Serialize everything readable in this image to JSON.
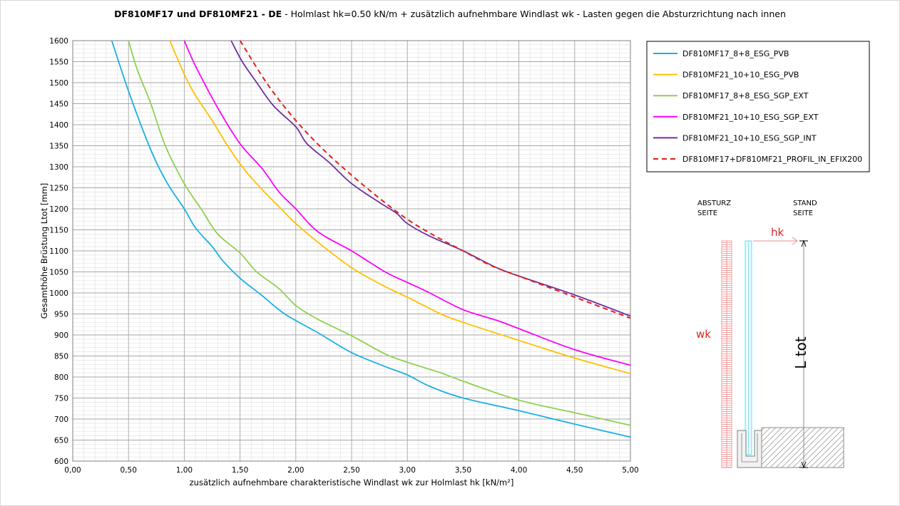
{
  "title": {
    "bold": "DF810MF17 und DF810MF21 - DE",
    "rest": " - Holmlast hk=0.50 kN/m + zusätzlich aufnehmbare Windlast wk - Lasten gegen die Absturzrichtung nach innen"
  },
  "chart_data": {
    "type": "line",
    "title": "DF810MF17 und DF810MF21 - DE - Holmlast hk=0.50 kN/m + zusätzlich aufnehmbare Windlast wk - Lasten gegen die Absturzrichtung nach innen",
    "xlabel": "zusätzlich aufnehmbare charakteristische Windlast wk zur Holmlast hk [kN/m²]",
    "ylabel": "Gesamthöhe Brüstung Ltot [mm]",
    "xlim": [
      0,
      5
    ],
    "ylim": [
      600,
      1600
    ],
    "x_ticks": [
      "0,00",
      "0,50",
      "1,00",
      "1,50",
      "2,00",
      "2,50",
      "3,00",
      "3,50",
      "4,00",
      "4,50",
      "5,00"
    ],
    "y_ticks": [
      "600",
      "650",
      "700",
      "750",
      "800",
      "850",
      "900",
      "950",
      "1000",
      "1050",
      "1100",
      "1150",
      "1200",
      "1250",
      "1300",
      "1350",
      "1400",
      "1450",
      "1500",
      "1550",
      "1600"
    ],
    "grid": "major and minor",
    "legend_position": "top-right",
    "series": [
      {
        "name": "DF810MF17_8+8_ESG_PVB",
        "color": "#1AAFE6",
        "dash": false,
        "points": [
          [
            0.35,
            1600
          ],
          [
            0.5,
            1480
          ],
          [
            0.7,
            1340
          ],
          [
            0.85,
            1260
          ],
          [
            1.0,
            1200
          ],
          [
            1.1,
            1155
          ],
          [
            1.25,
            1110
          ],
          [
            1.35,
            1075
          ],
          [
            1.5,
            1035
          ],
          [
            1.7,
            993
          ],
          [
            1.9,
            950
          ],
          [
            2.2,
            905
          ],
          [
            2.5,
            858
          ],
          [
            2.8,
            825
          ],
          [
            3.0,
            805
          ],
          [
            3.2,
            778
          ],
          [
            3.5,
            750
          ],
          [
            4.0,
            720
          ],
          [
            4.5,
            688
          ],
          [
            5.0,
            657
          ]
        ]
      },
      {
        "name": "DF810MF21_10+10_ESG_PVB",
        "color": "#FFC000",
        "dash": false,
        "points": [
          [
            0.87,
            1600
          ],
          [
            1.0,
            1520
          ],
          [
            1.1,
            1470
          ],
          [
            1.25,
            1410
          ],
          [
            1.4,
            1345
          ],
          [
            1.55,
            1290
          ],
          [
            1.7,
            1245
          ],
          [
            1.85,
            1205
          ],
          [
            2.0,
            1165
          ],
          [
            2.2,
            1120
          ],
          [
            2.5,
            1060
          ],
          [
            2.8,
            1015
          ],
          [
            3.0,
            990
          ],
          [
            3.3,
            950
          ],
          [
            3.5,
            930
          ],
          [
            4.0,
            887
          ],
          [
            4.5,
            845
          ],
          [
            5.0,
            808
          ]
        ]
      },
      {
        "name": "DF810MF17_8+8_ESG_SGP_EXT",
        "color": "#92D050",
        "dash": false,
        "points": [
          [
            0.5,
            1600
          ],
          [
            0.58,
            1530
          ],
          [
            0.7,
            1450
          ],
          [
            0.83,
            1350
          ],
          [
            1.0,
            1260
          ],
          [
            1.15,
            1200
          ],
          [
            1.3,
            1140
          ],
          [
            1.5,
            1095
          ],
          [
            1.65,
            1050
          ],
          [
            1.85,
            1010
          ],
          [
            2.0,
            970
          ],
          [
            2.2,
            937
          ],
          [
            2.5,
            898
          ],
          [
            2.8,
            855
          ],
          [
            3.0,
            835
          ],
          [
            3.3,
            810
          ],
          [
            3.5,
            790
          ],
          [
            4.0,
            745
          ],
          [
            4.5,
            715
          ],
          [
            5.0,
            685
          ]
        ]
      },
      {
        "name": "DF810MF21_10+10_ESG_SGP_EXT",
        "color": "#FF00FF",
        "dash": false,
        "points": [
          [
            1.0,
            1600
          ],
          [
            1.1,
            1540
          ],
          [
            1.3,
            1440
          ],
          [
            1.5,
            1355
          ],
          [
            1.7,
            1295
          ],
          [
            1.85,
            1240
          ],
          [
            2.0,
            1200
          ],
          [
            2.2,
            1145
          ],
          [
            2.5,
            1100
          ],
          [
            2.8,
            1050
          ],
          [
            3.0,
            1025
          ],
          [
            3.2,
            1000
          ],
          [
            3.5,
            960
          ],
          [
            3.8,
            935
          ],
          [
            4.0,
            915
          ],
          [
            4.5,
            865
          ],
          [
            5.0,
            828
          ]
        ]
      },
      {
        "name": "DF810MF21_10+10_ESG_SGP_INT",
        "color": "#7030A0",
        "dash": false,
        "points": [
          [
            1.42,
            1600
          ],
          [
            1.52,
            1550
          ],
          [
            1.65,
            1500
          ],
          [
            1.8,
            1445
          ],
          [
            2.0,
            1395
          ],
          [
            2.1,
            1355
          ],
          [
            2.3,
            1310
          ],
          [
            2.5,
            1260
          ],
          [
            2.75,
            1215
          ],
          [
            2.9,
            1190
          ],
          [
            3.0,
            1165
          ],
          [
            3.2,
            1135
          ],
          [
            3.5,
            1100
          ],
          [
            3.8,
            1060
          ],
          [
            4.0,
            1040
          ],
          [
            4.5,
            995
          ],
          [
            5.0,
            945
          ]
        ]
      },
      {
        "name": "DF810MF17+DF810MF21_PROFIL_IN_EFIX200",
        "color": "#E0201B",
        "dash": true,
        "points": [
          [
            1.5,
            1600
          ],
          [
            1.75,
            1495
          ],
          [
            2.0,
            1410
          ],
          [
            2.25,
            1340
          ],
          [
            2.5,
            1280
          ],
          [
            2.75,
            1225
          ],
          [
            3.0,
            1175
          ],
          [
            3.25,
            1135
          ],
          [
            3.5,
            1100
          ],
          [
            3.75,
            1065
          ],
          [
            4.0,
            1040
          ],
          [
            4.5,
            990
          ],
          [
            5.0,
            940
          ]
        ]
      }
    ]
  },
  "diagram": {
    "left_label": [
      "ABSTURZ",
      "SEITE"
    ],
    "right_label": [
      "STAND",
      "SEITE"
    ],
    "hk": "hk",
    "wk": "wk",
    "ltot": "L tot"
  }
}
